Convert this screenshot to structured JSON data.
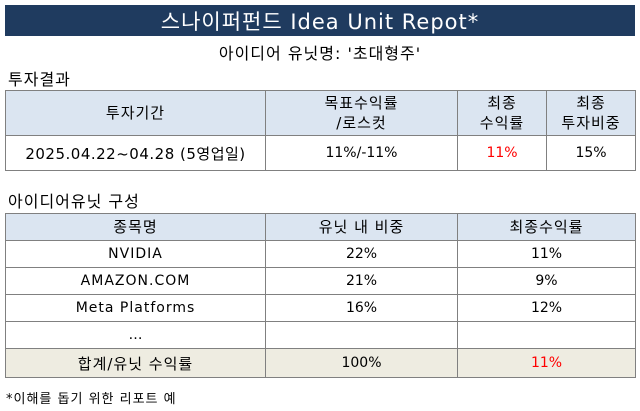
{
  "header": {
    "title": "스나이퍼펀드 Idea Unit Repot*",
    "subtitle": "아이디어 유닛명: '초대형주'"
  },
  "investment_result": {
    "section_title": "투자결과",
    "columns": {
      "period": "투자기간",
      "target_line1": "목표수익률",
      "target_line2": "/로스컷",
      "final_return_line1": "최종",
      "final_return_line2": "수익률",
      "final_weight_line1": "최종",
      "final_weight_line2": "투자비중"
    },
    "row": {
      "period": "2025.04.22~04.28 (5영업일)",
      "target": "11%/-11%",
      "final_return": "11%",
      "final_weight": "15%"
    }
  },
  "unit_composition": {
    "section_title": "아이디어유닛 구성",
    "columns": {
      "stock": "종목명",
      "weight": "유닛 내 비중",
      "final_return": "최종수익률"
    },
    "rows": [
      {
        "stock": "NVIDIA",
        "weight": "22%",
        "final_return": "11%"
      },
      {
        "stock": "AMAZON.COM",
        "weight": "21%",
        "final_return": "9%"
      },
      {
        "stock": "Meta Platforms",
        "weight": "16%",
        "final_return": "12%"
      },
      {
        "stock": "…",
        "weight": "",
        "final_return": ""
      }
    ],
    "total": {
      "label": "합계/유닛 수익률",
      "weight": "100%",
      "final_return": "11%"
    }
  },
  "footnote": "*이해를 돕기 위한 리포트 예",
  "colors": {
    "banner_bg": "#1f3b5f",
    "header_bg": "#dbe5f1",
    "total_bg": "#eeece1",
    "highlight": "#ff0000"
  }
}
